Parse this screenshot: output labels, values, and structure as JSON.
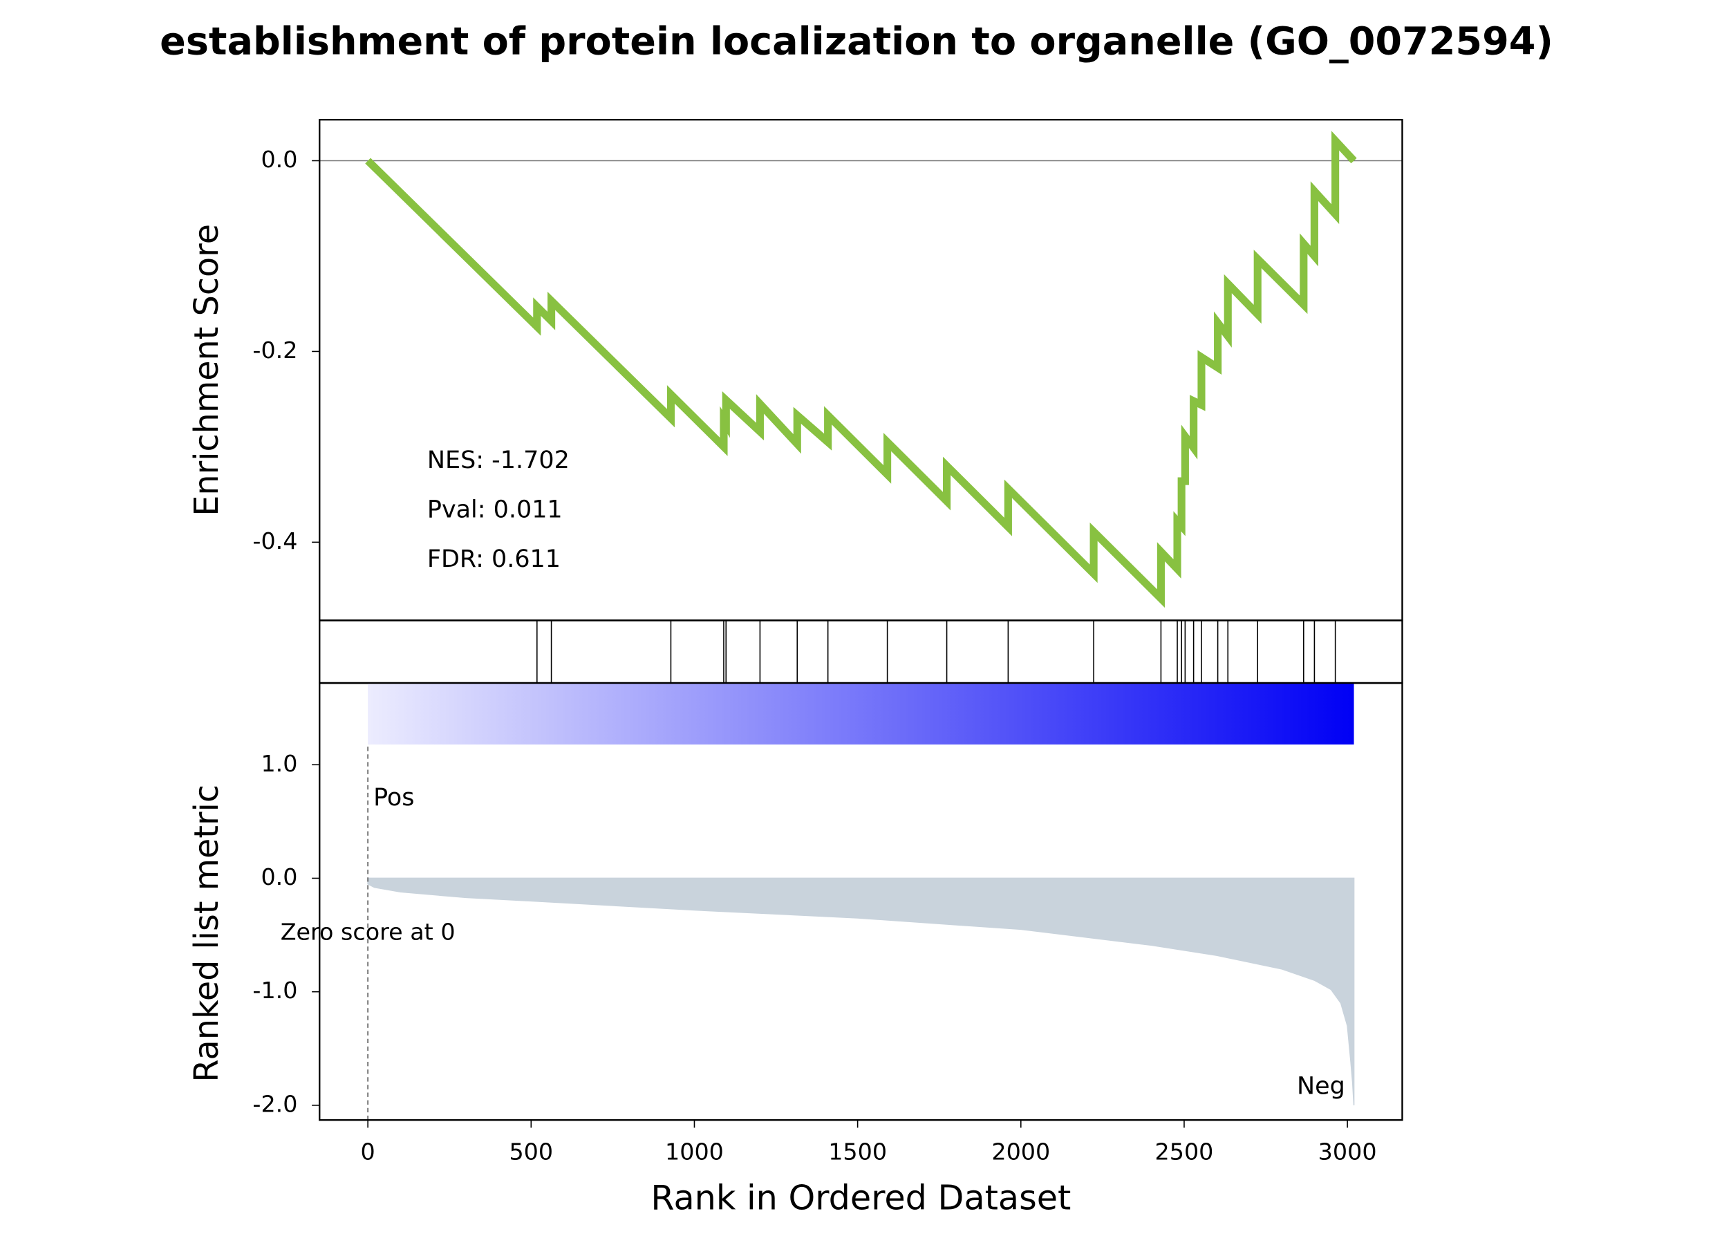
{
  "title": "establishment of protein localization to organelle (GO_0072594)",
  "chart_data": [
    {
      "type": "line",
      "ylabel": "Enrichment Score",
      "x": [
        0,
        518,
        518,
        562,
        562,
        928,
        928,
        1090,
        1090,
        1097,
        1097,
        1201,
        1201,
        1315,
        1315,
        1409,
        1409,
        1591,
        1591,
        1773,
        1773,
        1961,
        1961,
        2223,
        2223,
        2429,
        2429,
        2479,
        2479,
        2492,
        2492,
        2503,
        2503,
        2529,
        2529,
        2553,
        2553,
        2603,
        2603,
        2634,
        2634,
        2725,
        2725,
        2866,
        2866,
        2899,
        2899,
        2963,
        2963,
        3020
      ],
      "values": [
        0,
        -0.174,
        -0.153,
        -0.168,
        -0.147,
        -0.27,
        -0.245,
        -0.3,
        -0.272,
        -0.276,
        -0.251,
        -0.284,
        -0.255,
        -0.297,
        -0.267,
        -0.295,
        -0.267,
        -0.329,
        -0.295,
        -0.357,
        -0.32,
        -0.384,
        -0.344,
        -0.433,
        -0.389,
        -0.459,
        -0.41,
        -0.428,
        -0.378,
        -0.383,
        -0.336,
        -0.336,
        -0.289,
        -0.301,
        -0.252,
        -0.256,
        -0.206,
        -0.217,
        -0.17,
        -0.184,
        -0.129,
        -0.161,
        -0.103,
        -0.151,
        -0.087,
        -0.1,
        -0.032,
        -0.056,
        0.021,
        0
      ],
      "color": "#88c141",
      "hline": 0,
      "xlim": [
        -148,
        3168
      ],
      "ylim": [
        -0.482,
        0.043
      ],
      "yticks": [
        {
          "value": 0,
          "label": "0.0"
        },
        {
          "value": -0.2,
          "label": "-0.2"
        },
        {
          "value": -0.4,
          "label": "-0.4"
        }
      ],
      "annotations": [
        "NES: -1.702",
        "Pval: 0.011",
        "FDR: 0.611"
      ]
    },
    {
      "type": "rug",
      "x": [
        518,
        562,
        928,
        1090,
        1097,
        1201,
        1315,
        1409,
        1591,
        1773,
        1961,
        2223,
        2429,
        2479,
        2492,
        2503,
        2529,
        2553,
        2603,
        2634,
        2725,
        2866,
        2899,
        2963
      ],
      "color": "#000000",
      "xlim": [
        -148,
        3168
      ]
    },
    {
      "type": "area",
      "ylabel": "Ranked list metric",
      "xlabel": "Rank in Ordered Dataset",
      "x": [
        0,
        20,
        100,
        300,
        500,
        1000,
        1500,
        2000,
        2400,
        2600,
        2800,
        2900,
        2950,
        2980,
        3000,
        3010,
        3016,
        3020
      ],
      "values": [
        -0.05,
        -0.08,
        -0.12,
        -0.17,
        -0.2,
        -0.28,
        -0.35,
        -0.45,
        -0.59,
        -0.68,
        -0.8,
        -0.9,
        -0.98,
        -1.1,
        -1.3,
        -1.6,
        -1.8,
        -2.0
      ],
      "color": "#c9d3dc",
      "heatmap_colors": [
        "#ececfe",
        "#0000f5"
      ],
      "zero_rank": 0,
      "pos_label": "Pos",
      "pos_color": "#ff0000",
      "neg_label": "Neg",
      "neg_color": "#0000ff",
      "zero_label": "Zero score at 0",
      "xlim": [
        -148,
        3168
      ],
      "ylim": [
        -2.13,
        1.72
      ],
      "xticks": [
        0,
        500,
        1000,
        1500,
        2000,
        2500,
        3000
      ],
      "yticks": [
        {
          "value": 1,
          "label": "1.0"
        },
        {
          "value": 0,
          "label": "0.0"
        },
        {
          "value": -1,
          "label": "-1.0"
        },
        {
          "value": -2,
          "label": "-2.0"
        }
      ]
    }
  ]
}
